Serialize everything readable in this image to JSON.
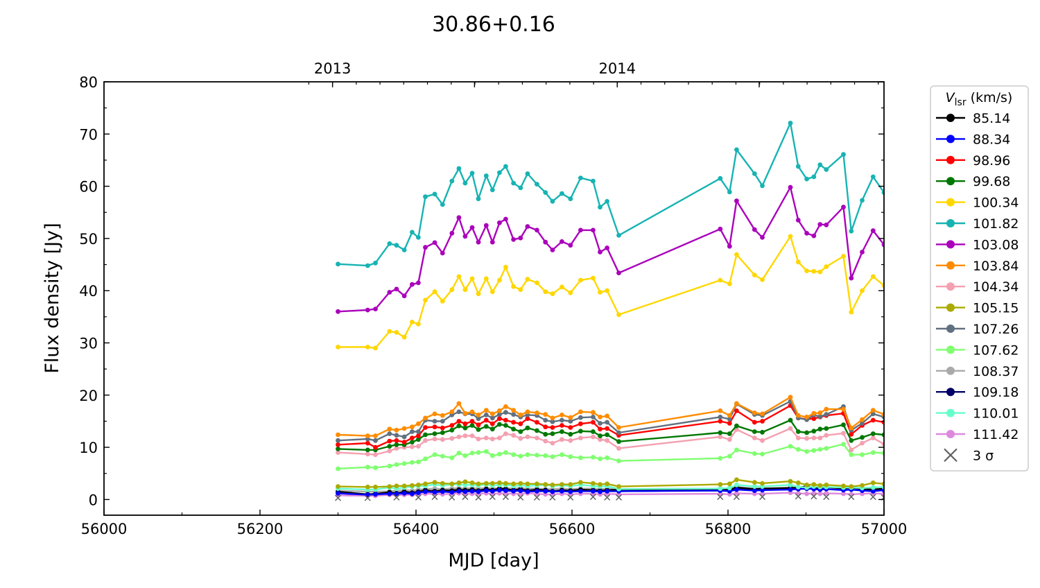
{
  "chart_data": {
    "type": "line",
    "title": "30.86+0.16",
    "xlabel": "MJD [day]",
    "ylabel": "Flux density [Jy]",
    "xlim": [
      56000,
      57000
    ],
    "ylim": [
      -3,
      80
    ],
    "x_ticks": [
      56000,
      56200,
      56400,
      56600,
      56800,
      57000
    ],
    "x_tick_labels": [
      "56000",
      "56200",
      "56400",
      "56600",
      "56800",
      "57000"
    ],
    "y_ticks": [
      0,
      10,
      20,
      30,
      40,
      50,
      60,
      70,
      80
    ],
    "y_tick_labels": [
      "0",
      "10",
      "20",
      "30",
      "40",
      "50",
      "60",
      "70",
      "80"
    ],
    "top_axis_ticks": [
      {
        "x": 56293,
        "label": "2013"
      },
      {
        "x": 56658,
        "label": "2014"
      }
    ],
    "legend": {
      "title_main": "V",
      "title_sub": "lsr",
      "title_unit": " (km/s)",
      "position": "outside-right",
      "sigma_label": "3 σ"
    },
    "x": [
      56300,
      56338,
      56348,
      56366,
      56375,
      56385,
      56395,
      56403,
      56412,
      56424,
      56434,
      56446,
      56455,
      56463,
      56472,
      56480,
      56490,
      56498,
      56507,
      56515,
      56525,
      56534,
      56543,
      56555,
      56566,
      56575,
      56587,
      56598,
      56611,
      56627,
      56636,
      56645,
      56660,
      56790,
      56802,
      56811,
      56834,
      56844,
      56880,
      56890,
      56901,
      56910,
      56918,
      56926,
      56948,
      56958,
      56972,
      56986,
      57000
    ],
    "series": [
      {
        "name": "85.14",
        "color": "#000000",
        "values": [
          1.5,
          1.0,
          1.1,
          1.4,
          1.2,
          1.5,
          1.3,
          1.5,
          1.8,
          1.6,
          1.8,
          1.7,
          1.9,
          1.8,
          1.9,
          1.7,
          2.0,
          1.8,
          2.1,
          2.0,
          1.8,
          2.0,
          1.7,
          1.9,
          1.8,
          1.6,
          1.8,
          1.7,
          1.9,
          1.8,
          1.7,
          1.8,
          1.9,
          2.0,
          1.9,
          2.3,
          2.0,
          2.1,
          2.2,
          2.3,
          2.5,
          2.3,
          2.2,
          2.4,
          2.1,
          2.3,
          2.0,
          1.9,
          2.1
        ]
      },
      {
        "name": "88.34",
        "color": "#0000ff",
        "values": [
          1.2,
          0.9,
          1.0,
          1.1,
          1.1,
          1.2,
          1.1,
          1.3,
          1.5,
          1.4,
          1.5,
          1.4,
          1.6,
          1.5,
          1.6,
          1.5,
          1.7,
          1.6,
          1.8,
          1.7,
          1.6,
          1.7,
          1.5,
          1.6,
          1.6,
          1.5,
          1.6,
          1.5,
          1.6,
          1.6,
          1.5,
          1.6,
          1.6,
          1.7,
          1.6,
          1.9,
          1.7,
          1.8,
          1.9,
          2.0,
          2.1,
          2.0,
          1.9,
          2.0,
          1.8,
          1.9,
          1.7,
          1.6,
          1.8
        ]
      },
      {
        "name": "98.96",
        "color": "#ff0000",
        "values": [
          10.5,
          10.8,
          10.0,
          11.2,
          11.3,
          11.0,
          11.8,
          12.2,
          13.8,
          13.9,
          13.7,
          14.2,
          15.0,
          14.5,
          15.0,
          14.3,
          15.2,
          14.5,
          15.5,
          15.2,
          14.8,
          14.5,
          15.5,
          14.8,
          13.9,
          13.8,
          14.2,
          13.8,
          14.5,
          14.8,
          13.5,
          13.6,
          12.3,
          15.0,
          14.6,
          17.0,
          14.8,
          15.0,
          18.0,
          15.6,
          15.4,
          15.5,
          15.8,
          16.1,
          16.5,
          12.5,
          14.2,
          15.2,
          14.8
        ]
      },
      {
        "name": "99.68",
        "color": "#007700",
        "values": [
          9.7,
          9.5,
          9.5,
          10.2,
          10.5,
          10.5,
          11.0,
          11.5,
          12.4,
          12.6,
          12.8,
          13.3,
          14.1,
          13.7,
          14.2,
          13.4,
          14.0,
          13.5,
          14.4,
          14.2,
          13.5,
          13.0,
          13.7,
          13.2,
          12.5,
          12.6,
          13.0,
          12.5,
          13.1,
          13.0,
          12.2,
          12.4,
          11.1,
          12.8,
          12.6,
          14.1,
          13.0,
          12.9,
          15.2,
          13.0,
          12.8,
          13.1,
          13.5,
          13.6,
          14.3,
          11.3,
          11.9,
          12.6,
          12.4
        ]
      },
      {
        "name": "100.34",
        "color": "#ffd700",
        "values": [
          29.2,
          29.2,
          29.0,
          32.2,
          32.0,
          31.1,
          34.0,
          33.6,
          38.2,
          39.8,
          38.0,
          40.2,
          42.7,
          40.2,
          42.3,
          39.4,
          42.3,
          39.8,
          42.0,
          44.5,
          40.8,
          40.2,
          42.2,
          41.5,
          39.8,
          39.4,
          40.7,
          39.6,
          42.0,
          42.4,
          39.7,
          40.0,
          35.4,
          42.0,
          41.3,
          46.9,
          43.0,
          42.1,
          50.4,
          45.5,
          43.8,
          43.7,
          43.6,
          44.6,
          46.6,
          35.9,
          40.0,
          42.7,
          41.0
        ]
      },
      {
        "name": "101.82",
        "color": "#17b3b3",
        "values": [
          45.1,
          44.8,
          45.3,
          49.0,
          48.7,
          47.8,
          51.2,
          50.2,
          58.0,
          58.5,
          56.5,
          61.0,
          63.4,
          60.6,
          62.5,
          57.6,
          62.0,
          59.3,
          62.6,
          63.8,
          60.6,
          59.7,
          62.4,
          60.4,
          58.8,
          57.1,
          58.6,
          57.6,
          61.6,
          61.0,
          56.0,
          57.1,
          50.6,
          61.5,
          58.9,
          67.0,
          62.4,
          60.1,
          72.1,
          63.8,
          61.4,
          61.8,
          64.1,
          63.2,
          66.1,
          51.4,
          57.3,
          61.8,
          58.8
        ]
      },
      {
        "name": "103.08",
        "color": "#aa00bb",
        "values": [
          36.0,
          36.3,
          36.5,
          39.7,
          40.3,
          39.0,
          41.2,
          41.5,
          48.3,
          49.2,
          47.2,
          51.0,
          54.0,
          50.4,
          52.1,
          49.3,
          52.5,
          49.3,
          53.0,
          53.7,
          49.8,
          50.1,
          52.3,
          51.6,
          49.3,
          47.8,
          49.4,
          48.7,
          51.6,
          51.6,
          47.4,
          48.2,
          43.4,
          51.8,
          48.5,
          57.2,
          51.7,
          50.2,
          59.8,
          53.5,
          51.0,
          50.5,
          52.7,
          52.6,
          56.0,
          42.4,
          47.4,
          51.5,
          48.8
        ]
      },
      {
        "name": "103.84",
        "color": "#ff8c00",
        "values": [
          12.4,
          12.2,
          12.2,
          13.5,
          13.3,
          13.6,
          13.9,
          14.5,
          15.6,
          16.4,
          16.1,
          16.8,
          18.4,
          16.5,
          16.8,
          16.2,
          17.1,
          16.4,
          17.0,
          17.8,
          17.1,
          16.2,
          16.8,
          16.6,
          16.3,
          15.6,
          16.2,
          15.7,
          16.8,
          16.7,
          15.8,
          16.0,
          13.8,
          17.0,
          16.1,
          18.4,
          16.6,
          16.4,
          19.6,
          16.1,
          15.8,
          16.5,
          16.6,
          17.3,
          17.3,
          13.7,
          15.3,
          17.1,
          16.3
        ]
      },
      {
        "name": "104.34",
        "color": "#f4a0b0",
        "values": [
          9.0,
          8.7,
          8.6,
          9.3,
          9.8,
          10.0,
          10.1,
          10.2,
          11.3,
          11.6,
          11.5,
          11.7,
          12.0,
          12.2,
          12.2,
          11.6,
          11.8,
          11.6,
          11.8,
          12.6,
          12.3,
          11.7,
          12.0,
          11.8,
          11.2,
          10.8,
          11.5,
          11.3,
          11.8,
          12.0,
          11.5,
          11.3,
          9.8,
          12.0,
          11.5,
          13.4,
          11.8,
          11.3,
          13.6,
          11.8,
          11.7,
          11.8,
          11.8,
          12.3,
          12.7,
          9.5,
          10.8,
          11.8,
          10.6
        ]
      },
      {
        "name": "105.15",
        "color": "#aaaa00",
        "values": [
          2.5,
          2.4,
          2.4,
          2.5,
          2.6,
          2.6,
          2.7,
          2.8,
          3.0,
          3.3,
          3.1,
          3.0,
          3.2,
          3.4,
          3.2,
          3.0,
          3.1,
          3.1,
          3.2,
          3.1,
          3.0,
          3.1,
          3.0,
          3.0,
          2.9,
          2.8,
          2.9,
          2.9,
          3.3,
          3.1,
          2.9,
          3.0,
          2.5,
          2.9,
          3.0,
          3.8,
          3.3,
          3.1,
          3.5,
          3.2,
          2.8,
          2.9,
          2.7,
          2.8,
          2.6,
          2.5,
          2.7,
          3.2,
          3.0
        ]
      },
      {
        "name": "107.26",
        "color": "#607080",
        "values": [
          11.3,
          11.6,
          11.3,
          12.6,
          12.3,
          12.0,
          13.0,
          13.0,
          15.2,
          15.0,
          15.0,
          16.2,
          16.8,
          16.4,
          16.4,
          15.5,
          16.2,
          15.6,
          16.3,
          16.7,
          16.3,
          15.8,
          16.2,
          16.1,
          15.2,
          14.9,
          15.2,
          15.0,
          15.7,
          15.8,
          14.6,
          14.8,
          12.8,
          15.8,
          15.4,
          18.3,
          16.3,
          16.1,
          18.8,
          15.6,
          15.3,
          16.2,
          15.9,
          16.3,
          17.8,
          13.3,
          14.6,
          16.4,
          15.8
        ]
      },
      {
        "name": "107.62",
        "color": "#80ff70",
        "values": [
          5.9,
          6.2,
          6.1,
          6.4,
          6.7,
          6.9,
          7.1,
          7.2,
          7.8,
          8.6,
          8.3,
          8.0,
          8.9,
          8.4,
          8.9,
          9.0,
          9.2,
          8.4,
          8.7,
          9.0,
          8.6,
          8.3,
          8.6,
          8.5,
          8.4,
          8.2,
          8.6,
          8.2,
          8.0,
          8.1,
          7.8,
          8.0,
          7.4,
          7.9,
          8.3,
          9.5,
          8.8,
          8.7,
          10.2,
          9.6,
          9.2,
          9.4,
          9.6,
          9.8,
          10.6,
          8.6,
          8.6,
          9.0,
          8.9
        ]
      },
      {
        "name": "108.37",
        "color": "#aaaaaa",
        "values": [
          1.7,
          1.5,
          1.5,
          1.6,
          1.7,
          1.8,
          1.7,
          1.9,
          2.0,
          2.1,
          2.0,
          2.1,
          2.2,
          2.1,
          2.2,
          2.1,
          2.2,
          2.1,
          2.2,
          2.2,
          2.1,
          2.2,
          2.1,
          2.1,
          2.0,
          2.0,
          2.1,
          2.0,
          2.1,
          2.1,
          2.0,
          2.1,
          2.0,
          2.1,
          2.0,
          2.4,
          2.1,
          2.1,
          2.3,
          2.1,
          2.0,
          2.1,
          2.0,
          2.1,
          2.0,
          1.9,
          2.0,
          2.1,
          2.0
        ]
      },
      {
        "name": "109.18",
        "color": "#000066",
        "values": [
          1.2,
          1.0,
          1.0,
          1.3,
          1.2,
          1.4,
          1.3,
          1.5,
          1.6,
          1.7,
          1.6,
          1.8,
          1.8,
          1.7,
          1.7,
          1.7,
          1.8,
          1.7,
          1.9,
          1.9,
          1.7,
          1.7,
          1.8,
          1.7,
          1.6,
          1.6,
          1.7,
          1.6,
          1.7,
          1.8,
          1.6,
          1.7,
          1.6,
          1.8,
          1.7,
          2.2,
          1.9,
          1.9,
          2.3,
          2.0,
          2.7,
          2.1,
          2.0,
          2.2,
          2.1,
          2.2,
          1.9,
          1.8,
          2.0
        ]
      },
      {
        "name": "110.01",
        "color": "#66ffcc",
        "values": [
          2.1,
          1.9,
          1.9,
          2.3,
          2.1,
          2.3,
          2.5,
          2.6,
          2.6,
          2.9,
          2.7,
          2.9,
          2.9,
          2.8,
          2.8,
          2.7,
          2.9,
          2.7,
          2.8,
          2.8,
          2.6,
          2.7,
          2.6,
          2.7,
          2.8,
          2.6,
          2.7,
          2.6,
          2.8,
          2.6,
          2.5,
          2.6,
          2.0,
          2.1,
          2.2,
          2.8,
          2.5,
          2.5,
          2.8,
          2.4,
          2.3,
          2.5,
          2.4,
          2.4,
          2.3,
          2.3,
          2.2,
          2.3,
          2.4
        ]
      },
      {
        "name": "111.42",
        "color": "#dd88dd",
        "values": [
          0.8,
          0.7,
          0.7,
          0.9,
          0.8,
          0.9,
          0.9,
          1.0,
          1.1,
          1.1,
          1.0,
          1.1,
          1.2,
          1.1,
          1.1,
          1.1,
          1.2,
          1.1,
          1.2,
          1.2,
          1.1,
          1.1,
          1.2,
          1.1,
          1.0,
          1.0,
          1.1,
          1.0,
          1.1,
          1.1,
          1.0,
          1.1,
          1.0,
          1.1,
          1.0,
          1.2,
          1.1,
          1.1,
          1.3,
          1.2,
          1.1,
          1.2,
          1.1,
          1.2,
          1.1,
          1.0,
          1.1,
          1.2,
          1.1
        ]
      }
    ],
    "sigma_marks": {
      "label": "3 σ",
      "color": "#606060",
      "x": [
        56300,
        56338,
        56375,
        56403,
        56424,
        56446,
        56463,
        56480,
        56498,
        56515,
        56534,
        56555,
        56575,
        56598,
        56627,
        56645,
        56660,
        56790,
        56811,
        56844,
        56890,
        56910,
        56926,
        56958,
        56986,
        57000
      ],
      "y": [
        0.3,
        0.3,
        0.4,
        0.4,
        0.5,
        0.4,
        0.5,
        0.4,
        0.5,
        0.5,
        0.4,
        0.4,
        0.4,
        0.4,
        0.5,
        0.4,
        0.4,
        0.5,
        0.5,
        0.5,
        0.6,
        0.6,
        0.5,
        0.5,
        0.5,
        0.4
      ]
    }
  }
}
